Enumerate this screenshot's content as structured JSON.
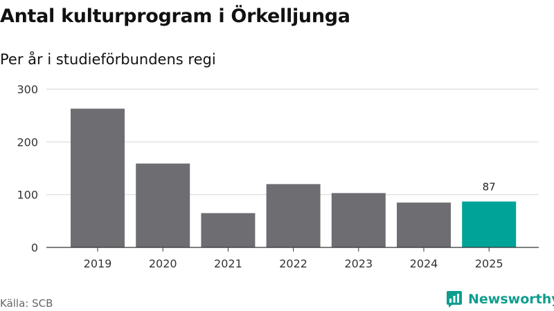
{
  "header": {
    "title": "Antal kulturprogram i Örkelljunga",
    "subtitle": "Per år i studieförbundens regi"
  },
  "footer": {
    "source": "Källa: SCB",
    "brand": "Newsworthy"
  },
  "colors": {
    "bar_default": "#6e6d72",
    "bar_highlight": "#00a398",
    "grid": "#d9d9d9",
    "axis": "#333333",
    "brand": "#0f9d8e"
  },
  "icons": {
    "logo": "newsworthy-logo-icon"
  },
  "chart_data": {
    "type": "bar",
    "title": "Antal kulturprogram i Örkelljunga",
    "subtitle": "Per år i studieförbundens regi",
    "categories": [
      "2019",
      "2020",
      "2021",
      "2022",
      "2023",
      "2024",
      "2025"
    ],
    "values": [
      263,
      159,
      65,
      120,
      103,
      85,
      87
    ],
    "highlight_index": 6,
    "data_labels": [
      {
        "index": 6,
        "text": "87"
      }
    ],
    "yticks": [
      0,
      100,
      200,
      300
    ],
    "ylim": [
      0,
      300
    ],
    "xlabel": "",
    "ylabel": "",
    "grid": true
  }
}
